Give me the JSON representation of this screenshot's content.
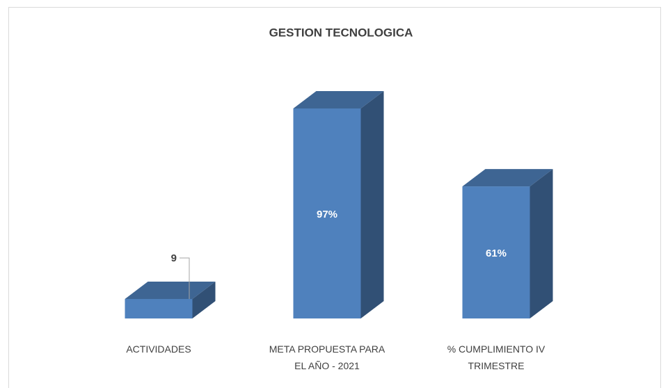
{
  "chart_data": {
    "type": "bar3d",
    "title": "GESTION TECNOLOGICA",
    "categories": [
      "ACTIVIDADES",
      "META PROPUESTA PARA EL AÑO - 2021",
      "% CUMPLIMIENTO IV TRIMESTRE"
    ],
    "values": [
      9,
      97,
      61
    ],
    "value_labels": [
      "9",
      "97%",
      "61%"
    ],
    "color": "#4f81bd"
  }
}
